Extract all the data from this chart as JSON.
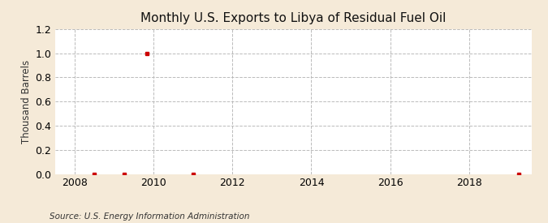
{
  "title": "Monthly U.S. Exports to Libya of Residual Fuel Oil",
  "ylabel": "Thousand Barrels",
  "source": "Source: U.S. Energy Information Administration",
  "xlim": [
    2007.5,
    2019.58
  ],
  "ylim": [
    0.0,
    1.2
  ],
  "yticks": [
    0.0,
    0.2,
    0.4,
    0.6,
    0.8,
    1.0,
    1.2
  ],
  "xticks": [
    2008,
    2010,
    2012,
    2014,
    2016,
    2018
  ],
  "figure_bg_color": "#f5ead8",
  "plot_bg_color": "#ffffff",
  "grid_color": "#bbbbbb",
  "marker_color": "#cc0000",
  "data_x": [
    2008.5,
    2009.25,
    2009.83,
    2011.0,
    2019.25
  ],
  "data_y": [
    0.0,
    0.0,
    1.0,
    0.0,
    0.0
  ],
  "title_fontsize": 11,
  "label_fontsize": 8.5,
  "tick_fontsize": 9,
  "source_fontsize": 7.5
}
